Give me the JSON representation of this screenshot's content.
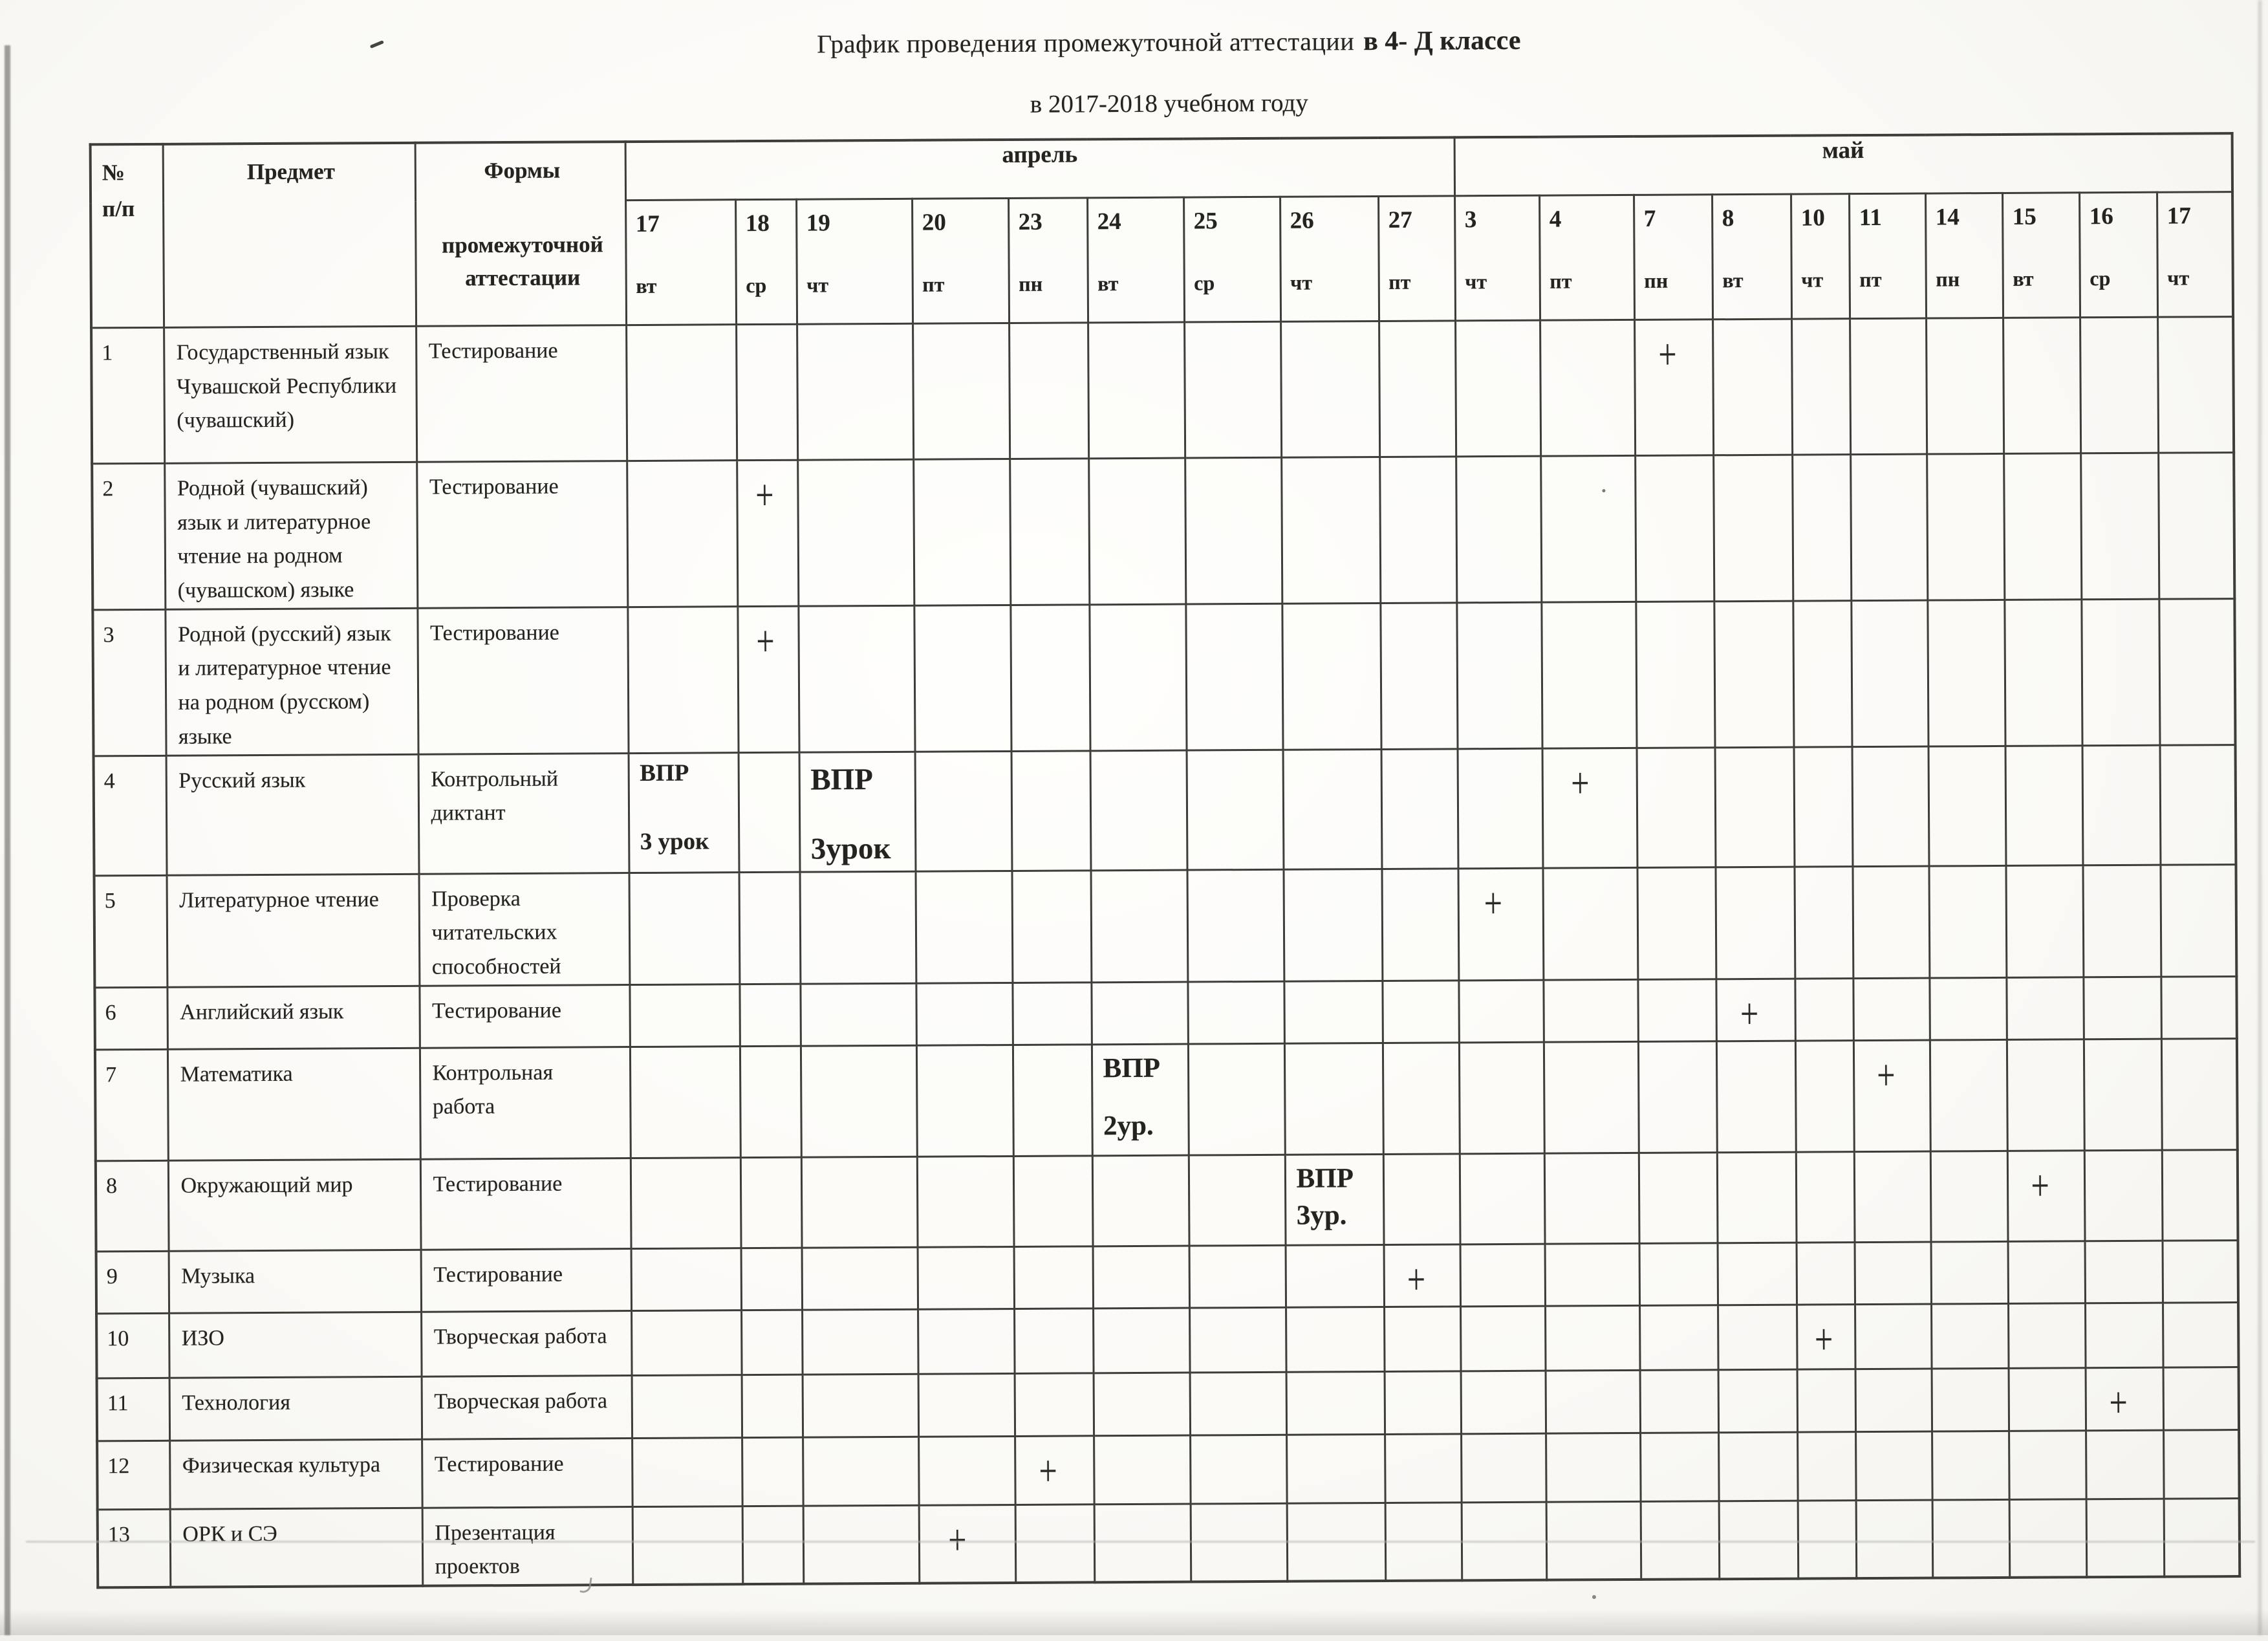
{
  "titles": {
    "line1_regular": "График проведения промежуточной аттестации",
    "line1_bold": "в 4- Д классе",
    "line2": "в 2017-2018 учебном году"
  },
  "table": {
    "col_headers": {
      "num_line1": "№",
      "num_line2": "п/п",
      "subject": "Предмет",
      "form_line1": "Формы",
      "form_line2": "промежуточной аттестации"
    },
    "months": [
      {
        "label": "апрель",
        "span": 9
      },
      {
        "label": "май",
        "span": 10
      }
    ],
    "days": [
      {
        "date": "17",
        "dow": "вт"
      },
      {
        "date": "18",
        "dow": "ср"
      },
      {
        "date": "19",
        "dow": "чт"
      },
      {
        "date": "20",
        "dow": "пт"
      },
      {
        "date": "23",
        "dow": "пн"
      },
      {
        "date": "24",
        "dow": "вт"
      },
      {
        "date": "25",
        "dow": "ср"
      },
      {
        "date": "26",
        "dow": "чт"
      },
      {
        "date": "27",
        "dow": "пт"
      },
      {
        "date": "3",
        "dow": "чт"
      },
      {
        "date": "4",
        "dow": "пт"
      },
      {
        "date": "7",
        "dow": "пн"
      },
      {
        "date": "8",
        "dow": "вт"
      },
      {
        "date": "10",
        "dow": "чт"
      },
      {
        "date": "11",
        "dow": "пт"
      },
      {
        "date": "14",
        "dow": "пн"
      },
      {
        "date": "15",
        "dow": "вт"
      },
      {
        "date": "16",
        "dow": "ср"
      },
      {
        "date": "17",
        "dow": "чт"
      }
    ],
    "rows": [
      {
        "num": "1",
        "subject": "Государственный язык Чувашской Республики (чувашский)",
        "form": "Тестирование",
        "marks": [
          {
            "day": 11,
            "type": "plus",
            "text": "+"
          }
        ]
      },
      {
        "num": "2",
        "subject": "Родной (чувашский) язык и литературное чтение на родном (чувашском) языке",
        "form": "Тестирование",
        "marks": [
          {
            "day": 1,
            "type": "plus",
            "text": "+"
          }
        ]
      },
      {
        "num": "3",
        "subject": "Родной (русский) язык и литературное чтение на родном (русском) языке",
        "form": "Тестирование",
        "marks": [
          {
            "day": 1,
            "type": "plus",
            "text": "+"
          }
        ]
      },
      {
        "num": "4",
        "subject": "Русский язык",
        "form": "Контрольный диктант",
        "marks": [
          {
            "day": 0,
            "type": "vpr-sm",
            "lines": [
              "ВПР",
              "3 урок"
            ]
          },
          {
            "day": 2,
            "type": "vpr-lg",
            "lines": [
              "ВПР",
              "3урок"
            ]
          },
          {
            "day": 10,
            "type": "plus",
            "text": "+"
          }
        ]
      },
      {
        "num": "5",
        "subject": "Литературное чтение",
        "form": "Проверка читательских способностей",
        "marks": [
          {
            "day": 9,
            "type": "plus",
            "text": "+"
          }
        ]
      },
      {
        "num": "6",
        "subject": "Английский язык",
        "form": "Тестирование",
        "marks": [
          {
            "day": 12,
            "type": "plus",
            "text": "+"
          }
        ]
      },
      {
        "num": "7",
        "subject": "Математика",
        "form": "Контрольная работа",
        "marks": [
          {
            "day": 5,
            "type": "vpr-md",
            "lines": [
              "ВПР",
              "2ур."
            ]
          },
          {
            "day": 14,
            "type": "plus",
            "text": "+"
          }
        ]
      },
      {
        "num": "8",
        "subject": "Окружающий мир",
        "form": "Тестирование",
        "marks": [
          {
            "day": 7,
            "type": "vpr-md2",
            "lines": [
              "ВПР",
              "3ур."
            ]
          },
          {
            "day": 16,
            "type": "plus",
            "text": "+"
          }
        ]
      },
      {
        "num": "9",
        "subject": "Музыка",
        "form": "Тестирование",
        "marks": [
          {
            "day": 8,
            "type": "plus",
            "text": "+"
          }
        ]
      },
      {
        "num": "10",
        "subject": "ИЗО",
        "form": "Творческая работа",
        "marks": [
          {
            "day": 13,
            "type": "plus",
            "text": "+"
          }
        ]
      },
      {
        "num": "11",
        "subject": "Технология",
        "form": "Творческая работа",
        "marks": [
          {
            "day": 17,
            "type": "plus",
            "text": "+"
          }
        ]
      },
      {
        "num": "12",
        "subject": "Физическая культура",
        "form": "Тестирование",
        "marks": [
          {
            "day": 4,
            "type": "plus",
            "text": "+"
          }
        ]
      },
      {
        "num": "13",
        "subject": "ОРК и СЭ",
        "form": "Презентация проектов",
        "marks": [
          {
            "day": 3,
            "type": "plus",
            "text": "+"
          }
        ]
      }
    ]
  }
}
